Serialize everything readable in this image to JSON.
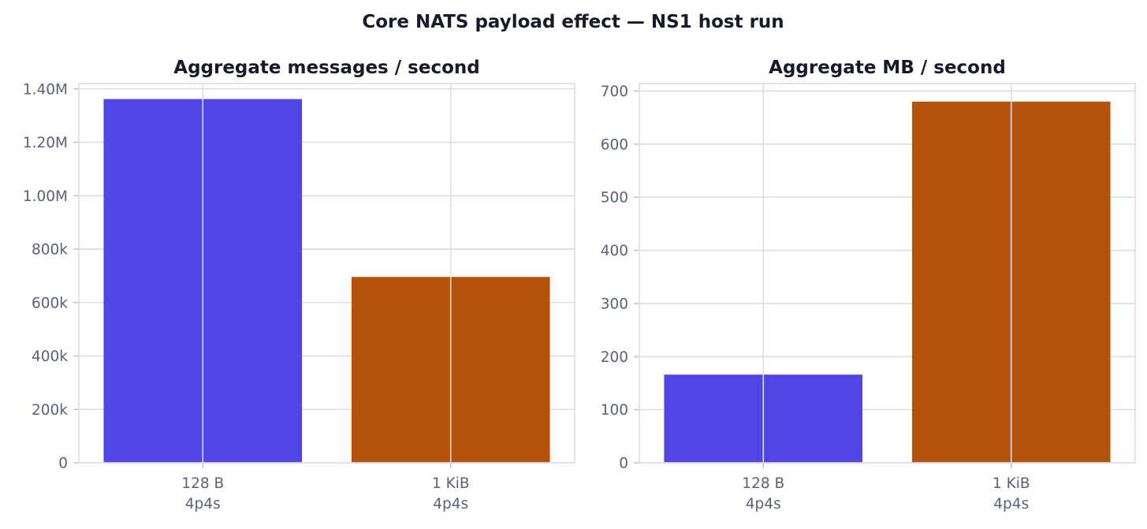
{
  "suptitle": "Core NATS payload effect — NS1 host run",
  "chart_data": [
    {
      "type": "bar",
      "title": "Aggregate messages / second",
      "categories": [
        [
          "128 B",
          "4p4s"
        ],
        [
          "1 KiB",
          "4p4s"
        ]
      ],
      "values": [
        1362000,
        696000
      ],
      "colors": [
        "#4f46e5",
        "#b45309"
      ],
      "ylim": [
        0,
        1420000
      ],
      "yticks": [
        0,
        200000,
        400000,
        600000,
        800000,
        1000000,
        1200000,
        1400000
      ],
      "ytick_labels": [
        "0",
        "200k",
        "400k",
        "600k",
        "800k",
        "1.00M",
        "1.20M",
        "1.40M"
      ],
      "grid": true
    },
    {
      "type": "bar",
      "title": "Aggregate MB / second",
      "categories": [
        [
          "128 B",
          "4p4s"
        ],
        [
          "1 KiB",
          "4p4s"
        ]
      ],
      "values": [
        166,
        680
      ],
      "colors": [
        "#4f46e5",
        "#b45309"
      ],
      "ylim": [
        0,
        714
      ],
      "yticks": [
        0,
        100,
        200,
        300,
        400,
        500,
        600,
        700
      ],
      "ytick_labels": [
        "0",
        "100",
        "200",
        "300",
        "400",
        "500",
        "600",
        "700"
      ],
      "grid": true
    }
  ]
}
